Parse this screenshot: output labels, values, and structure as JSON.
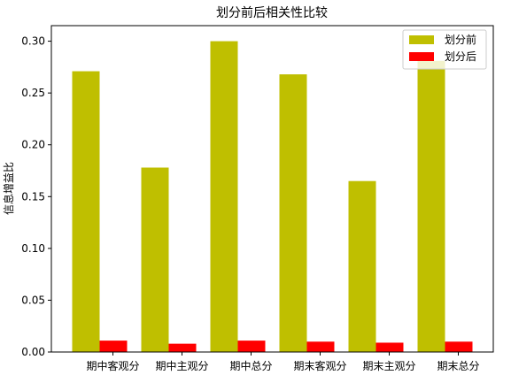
{
  "chart_data": {
    "type": "bar",
    "title": "划分前后相关性比较",
    "xlabel": "",
    "ylabel": "信息增益比",
    "categories": [
      "期中客观分",
      "期中主观分",
      "期中总分",
      "期末客观分",
      "期末主观分",
      "期末总分"
    ],
    "series": [
      {
        "name": "划分前",
        "color": "#bfbf00",
        "values": [
          0.271,
          0.178,
          0.3,
          0.268,
          0.165,
          0.281
        ]
      },
      {
        "name": "划分后",
        "color": "#ff0000",
        "values": [
          0.011,
          0.008,
          0.011,
          0.01,
          0.009,
          0.01
        ]
      }
    ],
    "ylim": [
      0,
      0.315
    ],
    "yticks": [
      0.0,
      0.05,
      0.1,
      0.15,
      0.2,
      0.25,
      0.3
    ],
    "ytick_labels": [
      "0.00",
      "0.05",
      "0.10",
      "0.15",
      "0.20",
      "0.25",
      "0.30"
    ],
    "legend_position": "top-right",
    "grid": false
  }
}
